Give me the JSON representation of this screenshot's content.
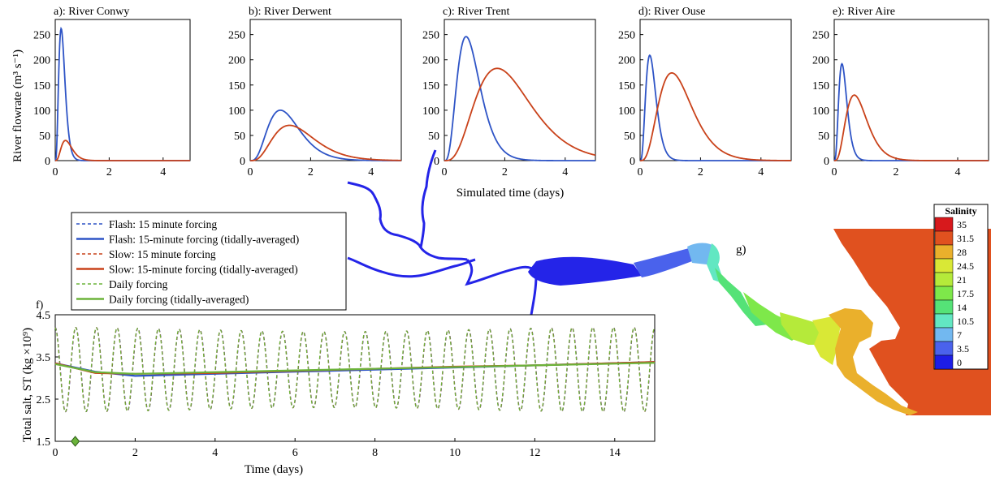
{
  "chart_data": [
    {
      "id": "a",
      "type": "line",
      "title": "a):  River Conwy",
      "xlim": [
        0,
        5
      ],
      "ylim": [
        0,
        280
      ],
      "xticks": [
        "0",
        "2",
        "4"
      ],
      "yticks": [
        "0",
        "50",
        "100",
        "150",
        "200",
        "250"
      ],
      "series": [
        {
          "color": "#2e54c6",
          "peak_day": 0.22,
          "peak_value": 262
        },
        {
          "color": "#c9421a",
          "peak_day": 0.38,
          "peak_value": 40
        }
      ]
    },
    {
      "id": "b",
      "type": "line",
      "title": "b):  River Derwent",
      "xlim": [
        0,
        5
      ],
      "ylim": [
        0,
        280
      ],
      "xticks": [
        "0",
        "2",
        "4"
      ],
      "yticks": [
        "0",
        "50",
        "100",
        "150",
        "200",
        "250"
      ],
      "series": [
        {
          "color": "#2e54c6",
          "peak_day": 1.0,
          "peak_value": 100
        },
        {
          "color": "#c9421a",
          "peak_day": 1.3,
          "peak_value": 70
        }
      ]
    },
    {
      "id": "c",
      "type": "line",
      "title": "c):  River Trent",
      "xlim": [
        0,
        5
      ],
      "ylim": [
        0,
        280
      ],
      "xticks": [
        "0",
        "2",
        "4"
      ],
      "yticks": [
        "0",
        "50",
        "100",
        "150",
        "200",
        "250"
      ],
      "series": [
        {
          "color": "#2e54c6",
          "peak_day": 0.72,
          "peak_value": 246
        },
        {
          "color": "#c9421a",
          "peak_day": 1.75,
          "peak_value": 183
        }
      ]
    },
    {
      "id": "d",
      "type": "line",
      "title": "d):  River Ouse",
      "xlim": [
        0,
        5
      ],
      "ylim": [
        0,
        280
      ],
      "xticks": [
        "0",
        "2",
        "4"
      ],
      "yticks": [
        "0",
        "50",
        "100",
        "150",
        "200",
        "250"
      ],
      "series": [
        {
          "color": "#2e54c6",
          "peak_day": 0.32,
          "peak_value": 209
        },
        {
          "color": "#c9421a",
          "peak_day": 1.05,
          "peak_value": 174
        }
      ]
    },
    {
      "id": "e",
      "type": "line",
      "title": "e):  River Aire",
      "xlim": [
        0,
        5
      ],
      "ylim": [
        0,
        280
      ],
      "xticks": [
        "0",
        "2",
        "4"
      ],
      "yticks": [
        "0",
        "50",
        "100",
        "150",
        "200",
        "250"
      ],
      "series": [
        {
          "color": "#2e54c6",
          "peak_day": 0.25,
          "peak_value": 192
        },
        {
          "color": "#c9421a",
          "peak_day": 0.65,
          "peak_value": 130
        }
      ]
    },
    {
      "id": "f",
      "type": "line",
      "title": "f)",
      "xlabel": "Time (days)",
      "ylabel": "Total salt, ST (kg ×10⁹)",
      "xlim": [
        0,
        15
      ],
      "ylim": [
        1.5,
        4.5
      ],
      "xticks": [
        "0",
        "2",
        "4",
        "6",
        "8",
        "10",
        "12",
        "14"
      ],
      "yticks": [
        "1.5",
        "2.5",
        "3.5",
        "4.5"
      ],
      "tidal_period_days": 0.5175,
      "oscillation_center": 3.2,
      "oscillation_amplitude": 1.0,
      "marker": {
        "x": 0.5,
        "y": 1.5,
        "color": "#6bb33a"
      },
      "series": [
        {
          "name": "Flash: 15 minute forcing",
          "color": "#2e54c6",
          "style": "dashed"
        },
        {
          "name": "Flash: 15-minute forcing (tidally-averaged)",
          "color": "#2e54c6",
          "style": "solid",
          "points": [
            [
              0,
              3.35
            ],
            [
              1,
              3.15
            ],
            [
              2,
              3.05
            ],
            [
              4,
              3.1
            ],
            [
              6,
              3.15
            ],
            [
              8,
              3.2
            ],
            [
              10,
              3.25
            ],
            [
              12,
              3.3
            ],
            [
              15,
              3.38
            ]
          ]
        },
        {
          "name": "Slow: 15 minute forcing",
          "color": "#c9421a",
          "style": "dashed"
        },
        {
          "name": "Slow: 15-minute forcing (tidally-averaged)",
          "color": "#c9421a",
          "style": "solid",
          "points": [
            [
              0,
              3.35
            ],
            [
              1,
              3.12
            ],
            [
              2,
              3.1
            ],
            [
              4,
              3.12
            ],
            [
              6,
              3.17
            ],
            [
              8,
              3.22
            ],
            [
              10,
              3.27
            ],
            [
              12,
              3.3
            ],
            [
              15,
              3.38
            ]
          ]
        },
        {
          "name": "Daily forcing",
          "color": "#6bb33a",
          "style": "dashed"
        },
        {
          "name": "Daily forcing (tidally-averaged)",
          "color": "#6bb33a",
          "style": "solid",
          "points": [
            [
              0,
              3.33
            ],
            [
              1,
              3.14
            ],
            [
              2,
              3.1
            ],
            [
              4,
              3.14
            ],
            [
              6,
              3.18
            ],
            [
              8,
              3.22
            ],
            [
              10,
              3.26
            ],
            [
              12,
              3.3
            ],
            [
              15,
              3.36
            ]
          ]
        }
      ]
    }
  ],
  "labels": {
    "top_ylabel": "River flowrate (m³ s⁻¹)",
    "top_xlabel": "Simulated time (days)",
    "panel_g": "g)"
  },
  "salinity_legend": {
    "title": "Salinity",
    "levels": [
      {
        "label": "35",
        "color": "#d7191c"
      },
      {
        "label": "31.5",
        "color": "#e0511f"
      },
      {
        "label": "28",
        "color": "#eab02c"
      },
      {
        "label": "24.5",
        "color": "#d9e836"
      },
      {
        "label": "21",
        "color": "#b5ea3a"
      },
      {
        "label": "17.5",
        "color": "#7ee84a"
      },
      {
        "label": "14",
        "color": "#55e277"
      },
      {
        "label": "10.5",
        "color": "#62e7c2"
      },
      {
        "label": "7",
        "color": "#72b8f0"
      },
      {
        "label": "3.5",
        "color": "#4a62ec"
      },
      {
        "label": "0",
        "color": "#1d1de6"
      }
    ]
  }
}
